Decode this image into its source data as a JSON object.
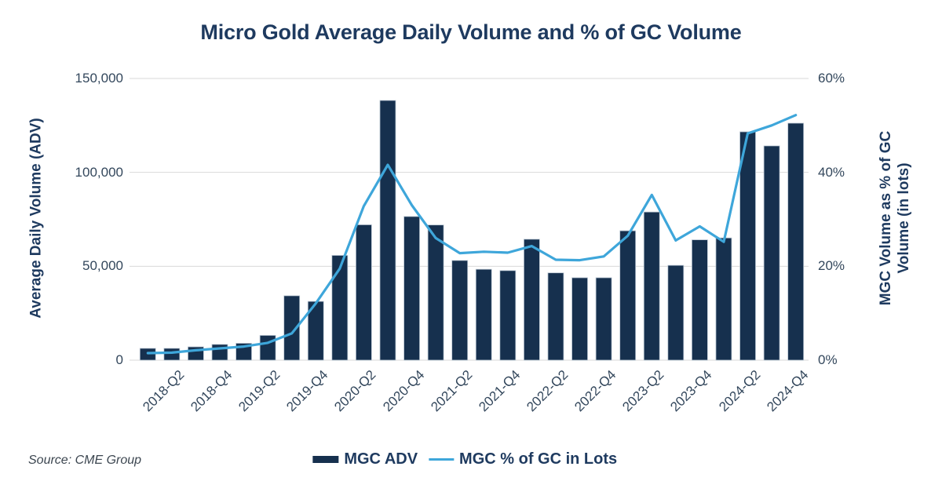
{
  "title": "Micro Gold Average Daily Volume and % of GC Volume",
  "source": {
    "text": "Source: CME Group"
  },
  "legend": {
    "items": [
      {
        "label": "MGC ADV",
        "swatch": "bar-swatch"
      },
      {
        "label": "MGC % of GC in Lots",
        "swatch": "line-swatch"
      }
    ]
  },
  "colors": {
    "bar": "#16304e",
    "bar_edge": "#bcc8d4",
    "line": "#3ea6da",
    "title": "#1e3a5f",
    "tick": "#33475c",
    "grid": "#d9d9d9",
    "source": "#3c4650"
  },
  "chart_data": {
    "type": "combo",
    "categories": [
      "2018-Q1",
      "2018-Q2",
      "2018-Q3",
      "2018-Q4",
      "2019-Q1",
      "2019-Q2",
      "2019-Q3",
      "2019-Q4",
      "2020-Q1",
      "2020-Q2",
      "2020-Q3",
      "2020-Q4",
      "2021-Q1",
      "2021-Q2",
      "2021-Q3",
      "2021-Q4",
      "2022-Q1",
      "2022-Q2",
      "2022-Q3",
      "2022-Q4",
      "2023-Q1",
      "2023-Q2",
      "2023-Q3",
      "2023-Q4",
      "2024-Q1",
      "2024-Q2",
      "2024-Q3",
      "2024-Q4"
    ],
    "x_tick_labels": [
      "2018-Q2",
      "2018-Q4",
      "2019-Q2",
      "2019-Q4",
      "2020-Q2",
      "2020-Q4",
      "2021-Q2",
      "2021-Q4",
      "2022-Q2",
      "2022-Q4",
      "2023-Q2",
      "2023-Q4",
      "2024-Q2",
      "2024-Q4"
    ],
    "series": [
      {
        "name": "MGC ADV",
        "type": "bar",
        "axis": "left",
        "values": [
          6300,
          6300,
          7100,
          8400,
          9000,
          13200,
          34300,
          31300,
          55800,
          72100,
          138300,
          76500,
          72000,
          53100,
          48400,
          47700,
          64400,
          46500,
          43900,
          43900,
          68900,
          78900,
          50500,
          64100,
          65100,
          121600,
          114100,
          126200
        ]
      },
      {
        "name": "MGC % of GC in Lots",
        "type": "line",
        "axis": "right",
        "values": [
          1.5,
          1.6,
          2.1,
          2.5,
          2.9,
          3.7,
          5.7,
          12.1,
          19.5,
          32.8,
          41.6,
          33,
          26,
          22.8,
          23.1,
          22.9,
          24.3,
          21.4,
          21.3,
          22.1,
          26.5,
          35.2,
          25.5,
          28.5,
          25.2,
          48.3,
          50,
          52.2
        ]
      }
    ],
    "left_axis": {
      "label": "Average Daily Volume (ADV)",
      "ticks": [
        "150,000",
        "100,000",
        "50,000",
        "0"
      ],
      "range": [
        0,
        150000
      ]
    },
    "right_axis": {
      "label_line1": "MGC Volume as % of GC",
      "label_line2": "Volume (in lots)",
      "ticks": [
        "60%",
        "40%",
        "20%",
        "0%"
      ],
      "range": [
        0,
        60
      ]
    },
    "grid": "horizontal",
    "legend_position": "bottom-center"
  }
}
